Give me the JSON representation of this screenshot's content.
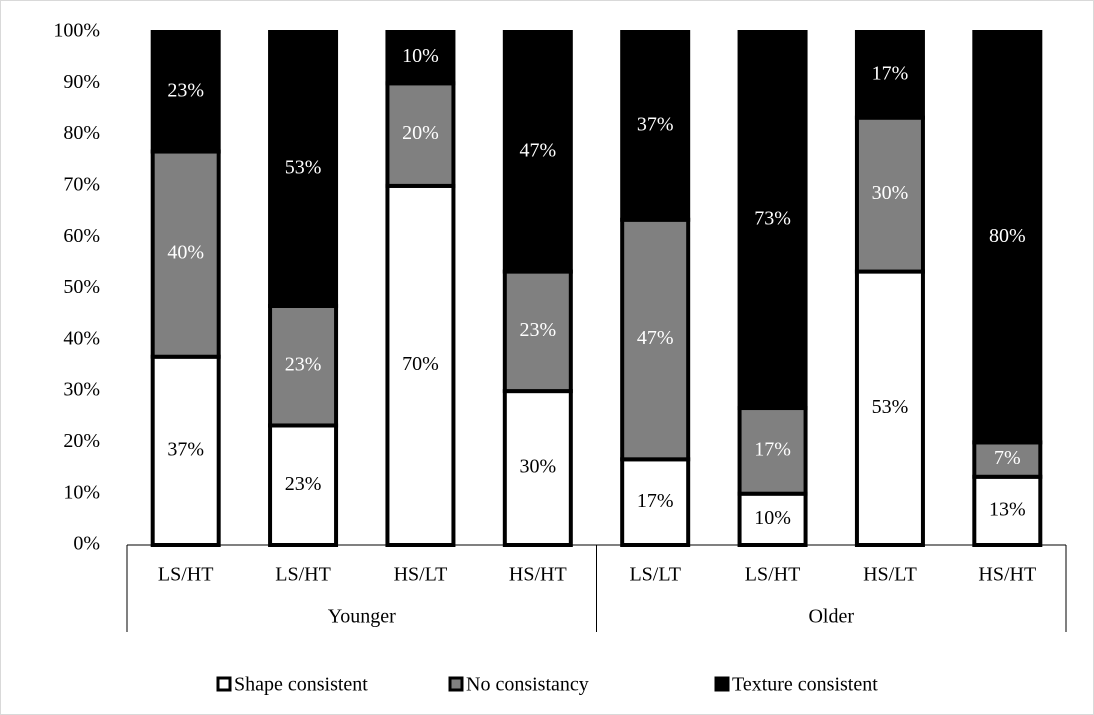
{
  "chart_data": {
    "type": "stacked_bar",
    "categories": [
      "LS/HT",
      "LS/HT",
      "HS/LT",
      "HS/HT",
      "LS/LT",
      "LS/HT",
      "HS/LT",
      "HS/HT"
    ],
    "group_labels": [
      "Younger",
      "Older"
    ],
    "series": [
      {
        "name": "Shape consistent",
        "color": "#ffffff",
        "text_color": "#000000",
        "values": [
          36.7,
          23.3,
          70,
          30,
          16.7,
          10,
          53.3,
          13.3
        ],
        "value_labels": [
          "37%",
          "23%",
          "70%",
          "30%",
          "17%",
          "10%",
          "53%",
          "13%"
        ]
      },
      {
        "name": "No consistancy",
        "color": "#808080",
        "text_color": "#ffffff",
        "values": [
          40,
          23.3,
          20,
          23.3,
          46.7,
          16.7,
          30,
          6.7
        ],
        "value_labels": [
          "40%",
          "23%",
          "20%",
          "23%",
          "47%",
          "17%",
          "30%",
          "7%"
        ]
      },
      {
        "name": "Texture consistent",
        "color": "#000000",
        "text_color": "#ffffff",
        "values": [
          23.3,
          53.4,
          10,
          46.7,
          36.6,
          73.3,
          16.7,
          80
        ],
        "value_labels": [
          "23%",
          "53%",
          "10%",
          "47%",
          "37%",
          "73%",
          "17%",
          "80%"
        ]
      }
    ],
    "ylim": [
      0,
      100
    ],
    "yticks": [
      {
        "value": 0,
        "label": "0%"
      },
      {
        "value": 10,
        "label": "10%"
      },
      {
        "value": 20,
        "label": "20%"
      },
      {
        "value": 30,
        "label": "30%"
      },
      {
        "value": 40,
        "label": "40%"
      },
      {
        "value": 50,
        "label": "50%"
      },
      {
        "value": 60,
        "label": "60%"
      },
      {
        "value": 70,
        "label": "70%"
      },
      {
        "value": 80,
        "label": "80%"
      },
      {
        "value": 90,
        "label": "90%"
      },
      {
        "value": 100,
        "label": "100%"
      }
    ],
    "legend": "bottom"
  }
}
